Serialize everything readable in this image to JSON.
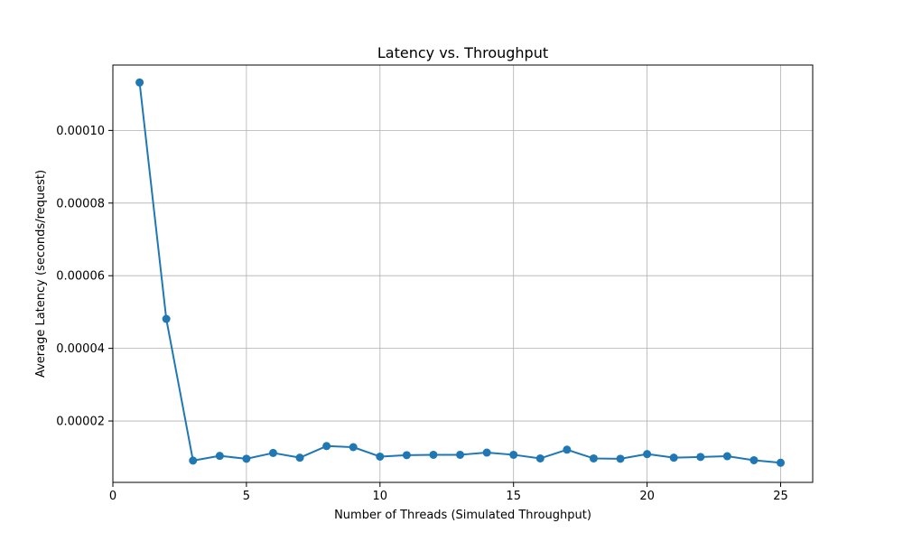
{
  "chart_data": {
    "type": "line",
    "title": "Latency vs. Throughput",
    "xlabel": "Number of Threads (Simulated Throughput)",
    "ylabel": "Average Latency (seconds/request)",
    "xlim": [
      0,
      26.2
    ],
    "ylim": [
      3.1e-06,
      0.000118
    ],
    "xticks": [
      0,
      5,
      10,
      15,
      20,
      25
    ],
    "xtick_labels": [
      "0",
      "5",
      "10",
      "15",
      "20",
      "25"
    ],
    "yticks": [
      2e-05,
      4e-05,
      6e-05,
      8e-05,
      0.0001
    ],
    "ytick_labels": [
      "0.00002",
      "0.00004",
      "0.00006",
      "0.00008",
      "0.00010"
    ],
    "grid": true,
    "series": [
      {
        "color": "#1f77b4",
        "marker": "circle",
        "x": [
          1,
          2,
          3,
          4,
          5,
          6,
          7,
          8,
          9,
          10,
          11,
          12,
          13,
          14,
          15,
          16,
          17,
          18,
          19,
          20,
          21,
          22,
          23,
          24,
          25
        ],
        "y": [
          0.0001132,
          4.81e-05,
          9.1e-06,
          1.04e-05,
          9.6e-06,
          1.12e-05,
          9.9e-06,
          1.31e-05,
          1.28e-05,
          1.02e-05,
          1.06e-05,
          1.07e-05,
          1.07e-05,
          1.13e-05,
          1.07e-05,
          9.7e-06,
          1.21e-05,
          9.7e-06,
          9.6e-06,
          1.09e-05,
          9.9e-06,
          1.01e-05,
          1.03e-05,
          9.2e-06,
          8.5e-06
        ]
      }
    ]
  }
}
